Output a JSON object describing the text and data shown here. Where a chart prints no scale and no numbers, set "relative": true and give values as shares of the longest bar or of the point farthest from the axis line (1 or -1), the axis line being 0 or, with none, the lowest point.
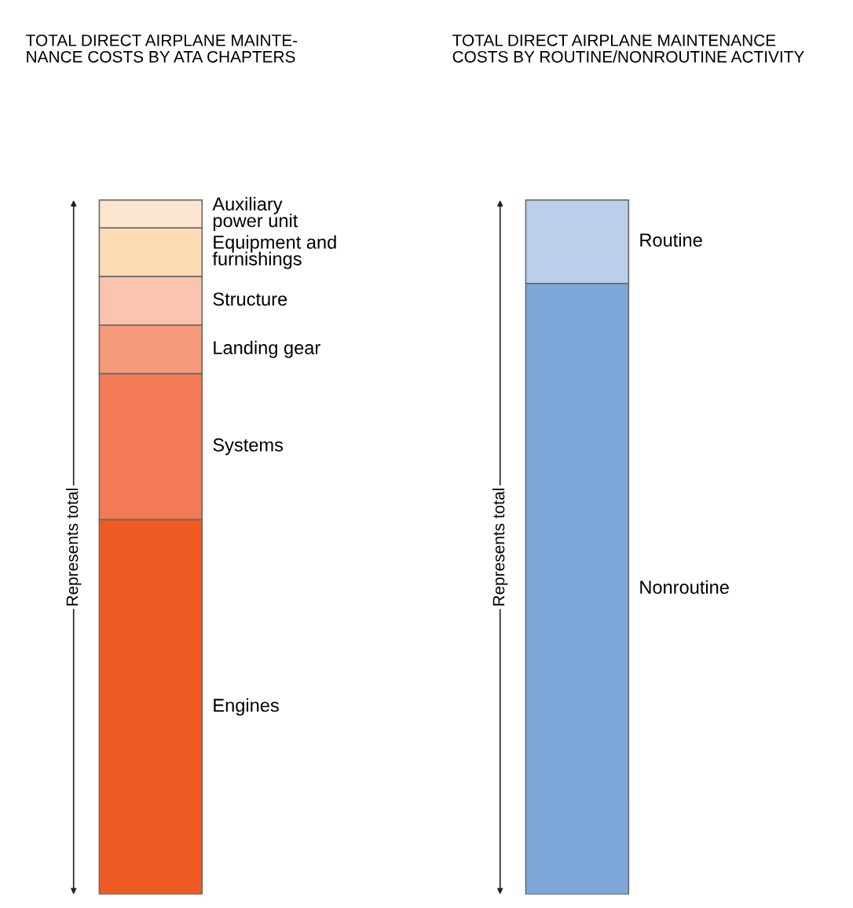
{
  "chart_data": [
    {
      "type": "bar",
      "title": "TOTAL DIRECT AIRPLANE MAINTE-\nNANCE COSTS BY ATA CHAPTERS",
      "categories": [
        null
      ],
      "stacked": true,
      "relative": true,
      "legend": false,
      "annotations": [
        "Represents total"
      ],
      "series": [
        {
          "name": "Engines",
          "color": "#ef5a22",
          "values": [
            0.54
          ]
        },
        {
          "name": "Systems",
          "color": "#f27b55",
          "values": [
            0.21
          ]
        },
        {
          "name": "Landing gear",
          "color": "#f59a7a",
          "values": [
            0.07
          ]
        },
        {
          "name": "Structure",
          "color": "#fbc4ae",
          "values": [
            0.07
          ]
        },
        {
          "name": "Equipment and\nfurnishings",
          "color": "#fddcb5",
          "values": [
            0.07
          ]
        },
        {
          "name": "Auxiliary\npower unit",
          "color": "#fbe5cf",
          "values": [
            0.04
          ]
        }
      ]
    },
    {
      "type": "bar",
      "title": "TOTAL DIRECT AIRPLANE MAINTENANCE\nCOSTS BY ROUTINE/NONROUTINE ACTIVITY",
      "categories": [
        null
      ],
      "stacked": true,
      "relative": true,
      "legend": false,
      "annotations": [
        "Represents total"
      ],
      "series": [
        {
          "name": "Nonroutine",
          "color": "#7da7d9",
          "values": [
            0.88
          ]
        },
        {
          "name": "Routine",
          "color": "#bccfea",
          "values": [
            0.12
          ]
        }
      ]
    }
  ]
}
